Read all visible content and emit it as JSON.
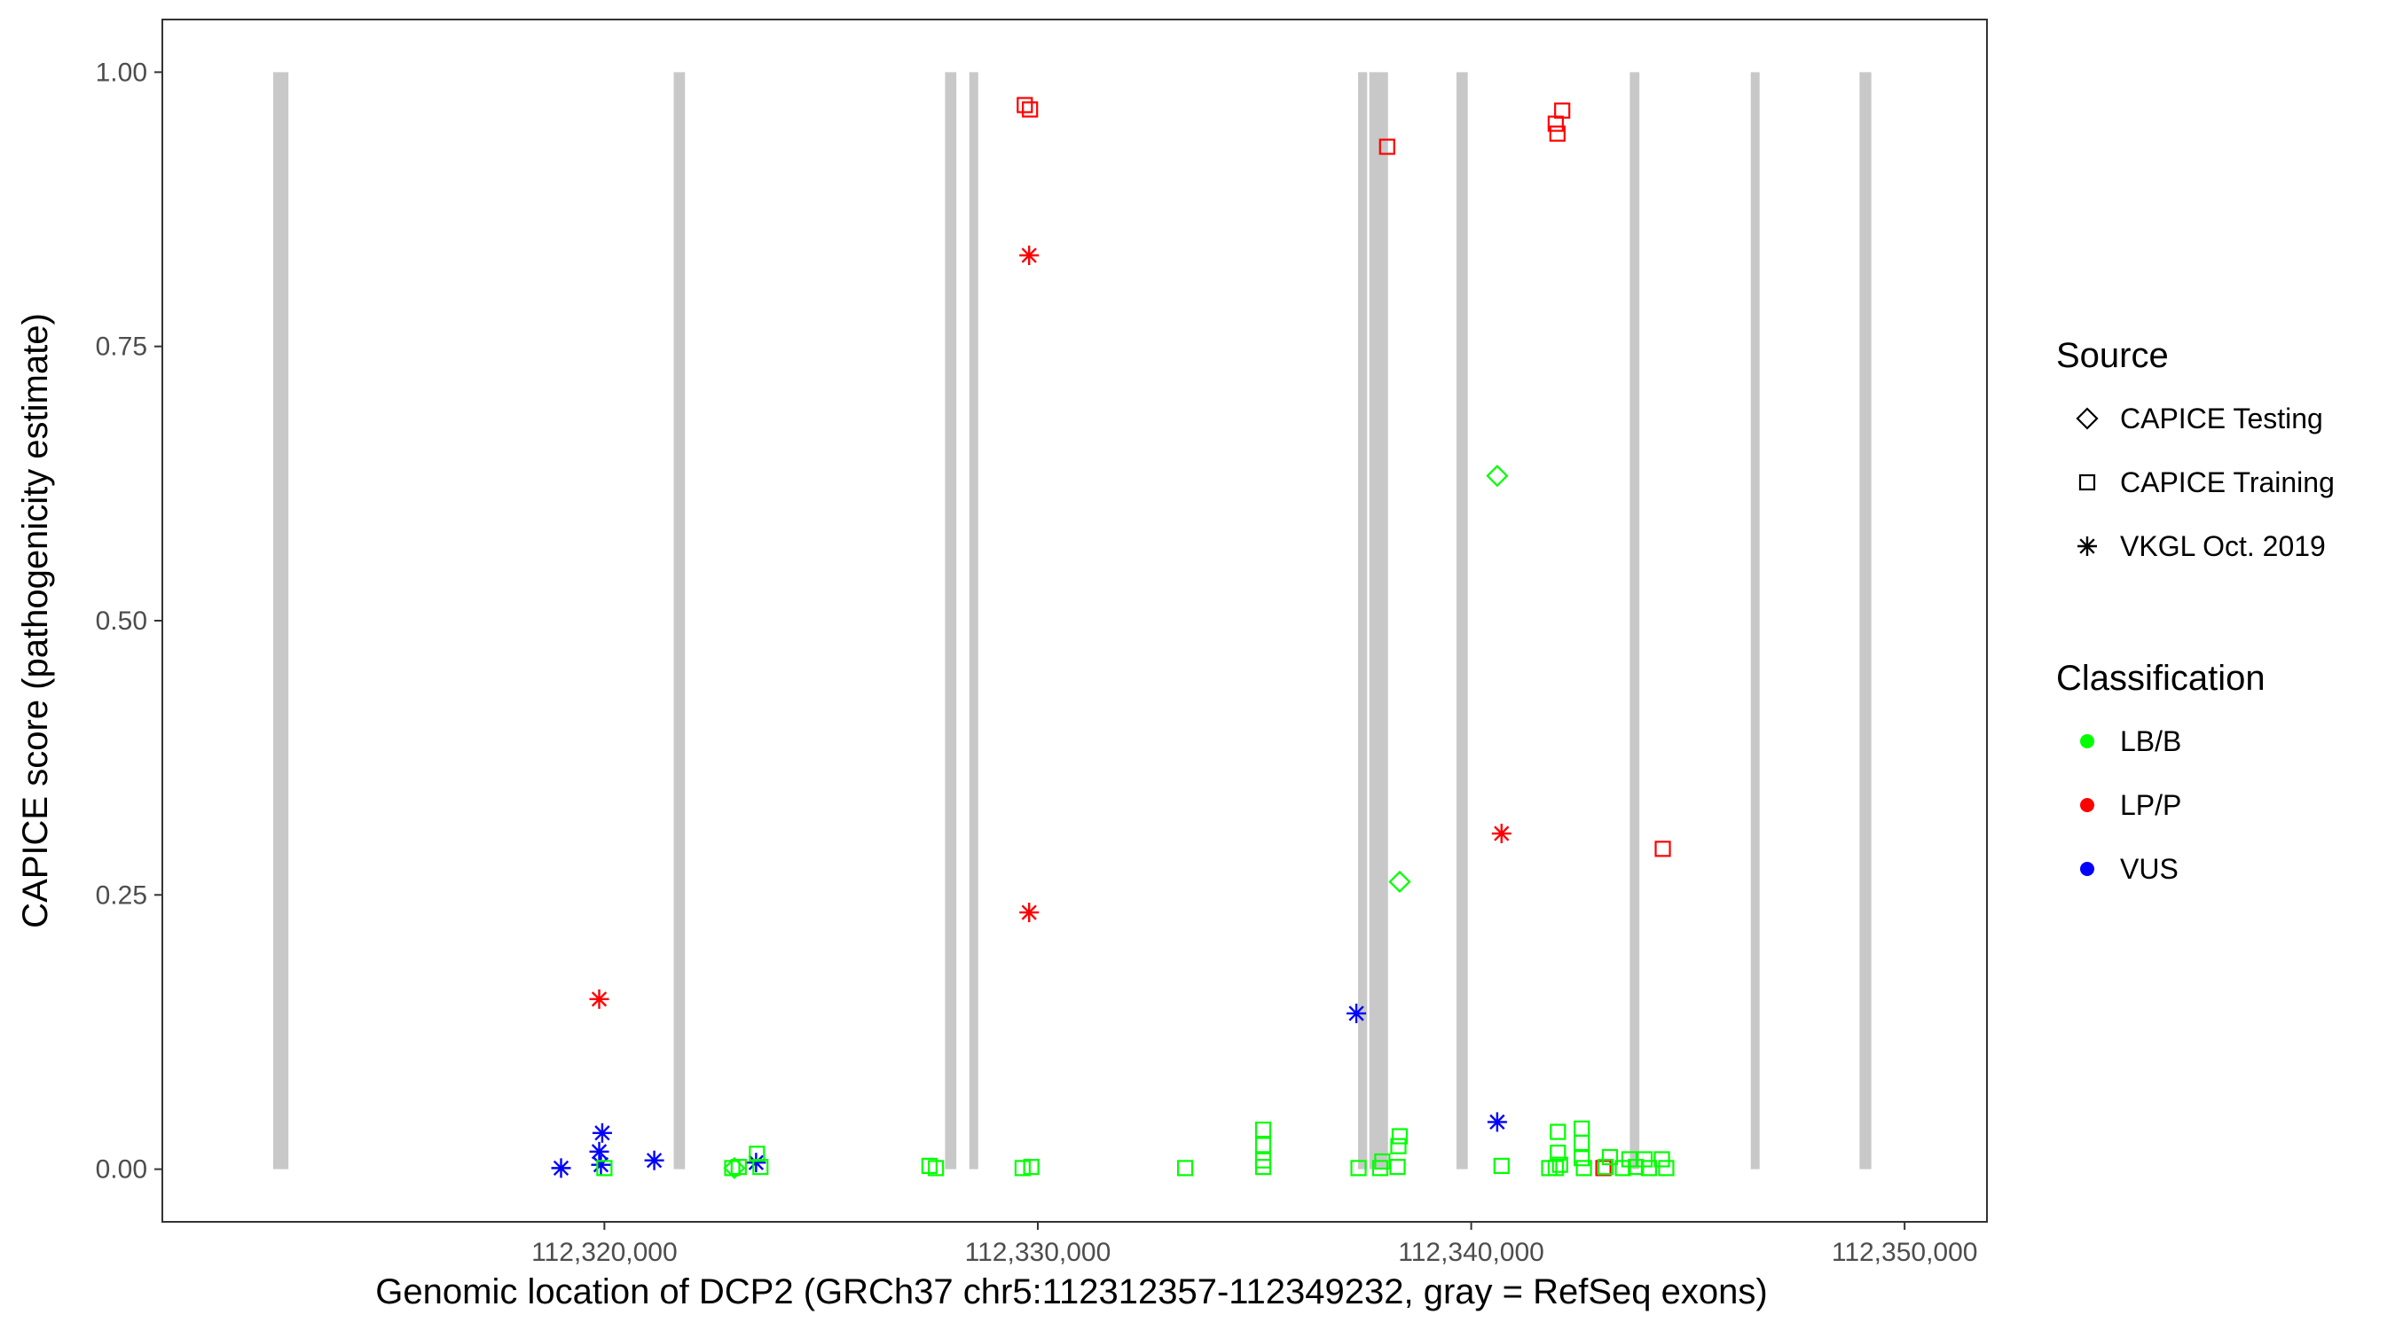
{
  "chart_data": {
    "type": "scatter",
    "xlabel": "Genomic location of DCP2 (GRCh37 chr5:112312357-112349232, gray = RefSeq exons)",
    "ylabel": "CAPICE score (pathogenicity estimate)",
    "xlim": [
      112309800,
      112351900
    ],
    "ylim": [
      -0.048,
      1.048
    ],
    "x_ticks": [
      112320000,
      112330000,
      112340000,
      112350000
    ],
    "x_tick_labels": [
      "112,320,000",
      "112,330,000",
      "112,340,000",
      "112,350,000"
    ],
    "y_ticks": [
      0,
      0.25,
      0.5,
      0.75,
      1.0
    ],
    "y_tick_labels": [
      "0.00",
      "0.25",
      "0.50",
      "0.75",
      "1.00"
    ],
    "grid": false,
    "exons": [
      {
        "start": 112312357,
        "end": 112312710
      },
      {
        "start": 112321600,
        "end": 112321860
      },
      {
        "start": 112327860,
        "end": 112328120
      },
      {
        "start": 112328420,
        "end": 112328620
      },
      {
        "start": 112337390,
        "end": 112337600
      },
      {
        "start": 112337650,
        "end": 112338080
      },
      {
        "start": 112339660,
        "end": 112339920
      },
      {
        "start": 112343660,
        "end": 112343880
      },
      {
        "start": 112346450,
        "end": 112346620
      },
      {
        "start": 112348960,
        "end": 112349232
      }
    ],
    "legend": {
      "position": "right",
      "source_title": "Source",
      "source_items": [
        {
          "label": "CAPICE Testing",
          "shape": "diamond"
        },
        {
          "label": "CAPICE Training",
          "shape": "square"
        },
        {
          "label": "VKGL Oct. 2019",
          "shape": "asterisk"
        }
      ],
      "class_title": "Classification",
      "class_items": [
        {
          "label": "LB/B",
          "color": "#00ff00"
        },
        {
          "label": "LP/P",
          "color": "#ff0000"
        },
        {
          "label": "VUS",
          "color": "#0000ff"
        }
      ]
    },
    "colors": {
      "LB/B": "#00ff00",
      "LP/P": "#ff0000",
      "VUS": "#0000ff",
      "exon": "#c8c8c8"
    },
    "points": [
      {
        "x": 112329700,
        "y": 0.97,
        "source": "CAPICE Training",
        "class": "LP/P"
      },
      {
        "x": 112329820,
        "y": 0.966,
        "source": "CAPICE Training",
        "class": "LP/P"
      },
      {
        "x": 112338060,
        "y": 0.932,
        "source": "CAPICE Training",
        "class": "LP/P"
      },
      {
        "x": 112341950,
        "y": 0.953,
        "source": "CAPICE Training",
        "class": "LP/P"
      },
      {
        "x": 112341990,
        "y": 0.944,
        "source": "CAPICE Training",
        "class": "LP/P"
      },
      {
        "x": 112342100,
        "y": 0.965,
        "source": "CAPICE Training",
        "class": "LP/P"
      },
      {
        "x": 112344420,
        "y": 0.292,
        "source": "CAPICE Training",
        "class": "LP/P"
      },
      {
        "x": 112343050,
        "y": 0.001,
        "source": "CAPICE Training",
        "class": "LP/P"
      },
      {
        "x": 112329800,
        "y": 0.833,
        "source": "VKGL Oct. 2019",
        "class": "LP/P"
      },
      {
        "x": 112329800,
        "y": 0.234,
        "source": "VKGL Oct. 2019",
        "class": "LP/P"
      },
      {
        "x": 112319880,
        "y": 0.155,
        "source": "VKGL Oct. 2019",
        "class": "LP/P"
      },
      {
        "x": 112340700,
        "y": 0.306,
        "source": "VKGL Oct. 2019",
        "class": "LP/P"
      },
      {
        "x": 112319000,
        "y": 0.001,
        "source": "VKGL Oct. 2019",
        "class": "VUS"
      },
      {
        "x": 112319880,
        "y": 0.016,
        "source": "VKGL Oct. 2019",
        "class": "VUS"
      },
      {
        "x": 112319950,
        "y": 0.033,
        "source": "VKGL Oct. 2019",
        "class": "VUS"
      },
      {
        "x": 112319920,
        "y": 0.004,
        "source": "VKGL Oct. 2019",
        "class": "VUS"
      },
      {
        "x": 112321150,
        "y": 0.008,
        "source": "VKGL Oct. 2019",
        "class": "VUS"
      },
      {
        "x": 112323500,
        "y": 0.006,
        "source": "VKGL Oct. 2019",
        "class": "VUS"
      },
      {
        "x": 112337350,
        "y": 0.142,
        "source": "VKGL Oct. 2019",
        "class": "VUS"
      },
      {
        "x": 112340600,
        "y": 0.043,
        "source": "VKGL Oct. 2019",
        "class": "VUS"
      },
      {
        "x": 112340600,
        "y": 0.632,
        "source": "CAPICE Testing",
        "class": "LB/B"
      },
      {
        "x": 112338350,
        "y": 0.262,
        "source": "CAPICE Testing",
        "class": "LB/B"
      },
      {
        "x": 112323000,
        "y": 0.001,
        "source": "CAPICE Testing",
        "class": "LB/B"
      },
      {
        "x": 112320000,
        "y": 0.001,
        "source": "CAPICE Training",
        "class": "LB/B"
      },
      {
        "x": 112322950,
        "y": 0.001,
        "source": "CAPICE Training",
        "class": "LB/B"
      },
      {
        "x": 112323100,
        "y": 0.002,
        "source": "CAPICE Training",
        "class": "LB/B"
      },
      {
        "x": 112323520,
        "y": 0.014,
        "source": "CAPICE Training",
        "class": "LB/B"
      },
      {
        "x": 112323600,
        "y": 0.002,
        "source": "CAPICE Training",
        "class": "LB/B"
      },
      {
        "x": 112327500,
        "y": 0.003,
        "source": "CAPICE Training",
        "class": "LB/B"
      },
      {
        "x": 112327650,
        "y": 0.001,
        "source": "CAPICE Training",
        "class": "LB/B"
      },
      {
        "x": 112329650,
        "y": 0.001,
        "source": "CAPICE Training",
        "class": "LB/B"
      },
      {
        "x": 112329850,
        "y": 0.002,
        "source": "CAPICE Training",
        "class": "LB/B"
      },
      {
        "x": 112333400,
        "y": 0.001,
        "source": "CAPICE Training",
        "class": "LB/B"
      },
      {
        "x": 112335200,
        "y": 0.036,
        "source": "CAPICE Training",
        "class": "LB/B"
      },
      {
        "x": 112335200,
        "y": 0.022,
        "source": "CAPICE Training",
        "class": "LB/B"
      },
      {
        "x": 112335200,
        "y": 0.008,
        "source": "CAPICE Training",
        "class": "LB/B"
      },
      {
        "x": 112335200,
        "y": 0.002,
        "source": "CAPICE Training",
        "class": "LB/B"
      },
      {
        "x": 112337400,
        "y": 0.001,
        "source": "CAPICE Training",
        "class": "LB/B"
      },
      {
        "x": 112337900,
        "y": 0.001,
        "source": "CAPICE Training",
        "class": "LB/B"
      },
      {
        "x": 112337950,
        "y": 0.007,
        "source": "CAPICE Training",
        "class": "LB/B"
      },
      {
        "x": 112338300,
        "y": 0.002,
        "source": "CAPICE Training",
        "class": "LB/B"
      },
      {
        "x": 112338350,
        "y": 0.03,
        "source": "CAPICE Training",
        "class": "LB/B"
      },
      {
        "x": 112338320,
        "y": 0.021,
        "source": "CAPICE Training",
        "class": "LB/B"
      },
      {
        "x": 112340700,
        "y": 0.003,
        "source": "CAPICE Training",
        "class": "LB/B"
      },
      {
        "x": 112341800,
        "y": 0.001,
        "source": "CAPICE Training",
        "class": "LB/B"
      },
      {
        "x": 112341950,
        "y": 0.001,
        "source": "CAPICE Training",
        "class": "LB/B"
      },
      {
        "x": 112342000,
        "y": 0.034,
        "source": "CAPICE Training",
        "class": "LB/B"
      },
      {
        "x": 112342000,
        "y": 0.015,
        "source": "CAPICE Training",
        "class": "LB/B"
      },
      {
        "x": 112342050,
        "y": 0.004,
        "source": "CAPICE Training",
        "class": "LB/B"
      },
      {
        "x": 112342550,
        "y": 0.037,
        "source": "CAPICE Training",
        "class": "LB/B"
      },
      {
        "x": 112342550,
        "y": 0.024,
        "source": "CAPICE Training",
        "class": "LB/B"
      },
      {
        "x": 112342550,
        "y": 0.01,
        "source": "CAPICE Training",
        "class": "LB/B"
      },
      {
        "x": 112342600,
        "y": 0.001,
        "source": "CAPICE Training",
        "class": "LB/B"
      },
      {
        "x": 112343100,
        "y": 0.002,
        "source": "CAPICE Training",
        "class": "LB/B"
      },
      {
        "x": 112343200,
        "y": 0.011,
        "source": "CAPICE Training",
        "class": "LB/B"
      },
      {
        "x": 112343500,
        "y": 0.001,
        "source": "CAPICE Training",
        "class": "LB/B"
      },
      {
        "x": 112343650,
        "y": 0.009,
        "source": "CAPICE Training",
        "class": "LB/B"
      },
      {
        "x": 112343800,
        "y": 0.002,
        "source": "CAPICE Training",
        "class": "LB/B"
      },
      {
        "x": 112344000,
        "y": 0.009,
        "source": "CAPICE Training",
        "class": "LB/B"
      },
      {
        "x": 112344100,
        "y": 0.001,
        "source": "CAPICE Training",
        "class": "LB/B"
      },
      {
        "x": 112344400,
        "y": 0.009,
        "source": "CAPICE Training",
        "class": "LB/B"
      },
      {
        "x": 112344500,
        "y": 0.001,
        "source": "CAPICE Training",
        "class": "LB/B"
      }
    ]
  }
}
